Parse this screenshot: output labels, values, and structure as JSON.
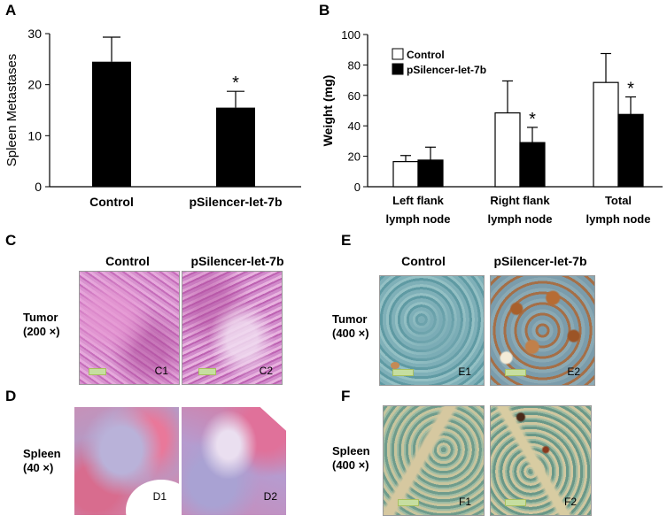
{
  "panels": {
    "A": "A",
    "B": "B",
    "C": "C",
    "D": "D",
    "E": "E",
    "F": "F"
  },
  "chart_data": [
    {
      "panel": "A",
      "type": "bar",
      "categories": [
        "Control",
        "pSilencer-let-7b"
      ],
      "values": [
        24.5,
        15.5
      ],
      "errors": [
        4.8,
        3.2
      ],
      "significance": [
        "",
        "*"
      ],
      "ylabel": "Spleen Metastases",
      "ylim": [
        0,
        30
      ],
      "yticks": [
        0,
        10,
        20,
        30
      ],
      "colors": [
        "#000000"
      ]
    },
    {
      "panel": "B",
      "type": "bar",
      "categories": [
        "Left flank lymph node",
        "Right flank lymph node",
        "Total lymph node"
      ],
      "category_lines": [
        [
          "Left flank",
          "lymph node"
        ],
        [
          "Right flank",
          "lymph node"
        ],
        [
          "Total",
          "lymph node"
        ]
      ],
      "series": [
        {
          "name": "Control",
          "values": [
            16.5,
            48.5,
            68.5
          ],
          "errors": [
            4,
            21,
            19
          ],
          "color": "#ffffff"
        },
        {
          "name": "pSilencer-let-7b",
          "values": [
            17.5,
            29,
            47.5
          ],
          "errors": [
            8.5,
            10,
            11.5
          ],
          "color": "#000000"
        }
      ],
      "significance": [
        "",
        "*",
        "*"
      ],
      "ylabel": "Weight (mg)",
      "ylim": [
        0,
        100
      ],
      "yticks": [
        0,
        20,
        40,
        60,
        80,
        100
      ],
      "legend": "top-left"
    }
  ],
  "histology": {
    "C": {
      "col1": "Control",
      "col2": "pSilencer-let-7b",
      "row_label": [
        "Tumor",
        "(200 ×)"
      ],
      "img1": "C1",
      "img2": "C2"
    },
    "D": {
      "row_label": [
        "Spleen",
        "(40 ×)"
      ],
      "img1": "D1",
      "img2": "D2"
    },
    "E": {
      "col1": "Control",
      "col2": "pSilencer-let-7b",
      "row_label": [
        "Tumor",
        "(400 ×)"
      ],
      "img1": "E1",
      "img2": "E2"
    },
    "F": {
      "row_label": [
        "Spleen",
        "(400 ×)"
      ],
      "img1": "F1",
      "img2": "F2"
    }
  }
}
